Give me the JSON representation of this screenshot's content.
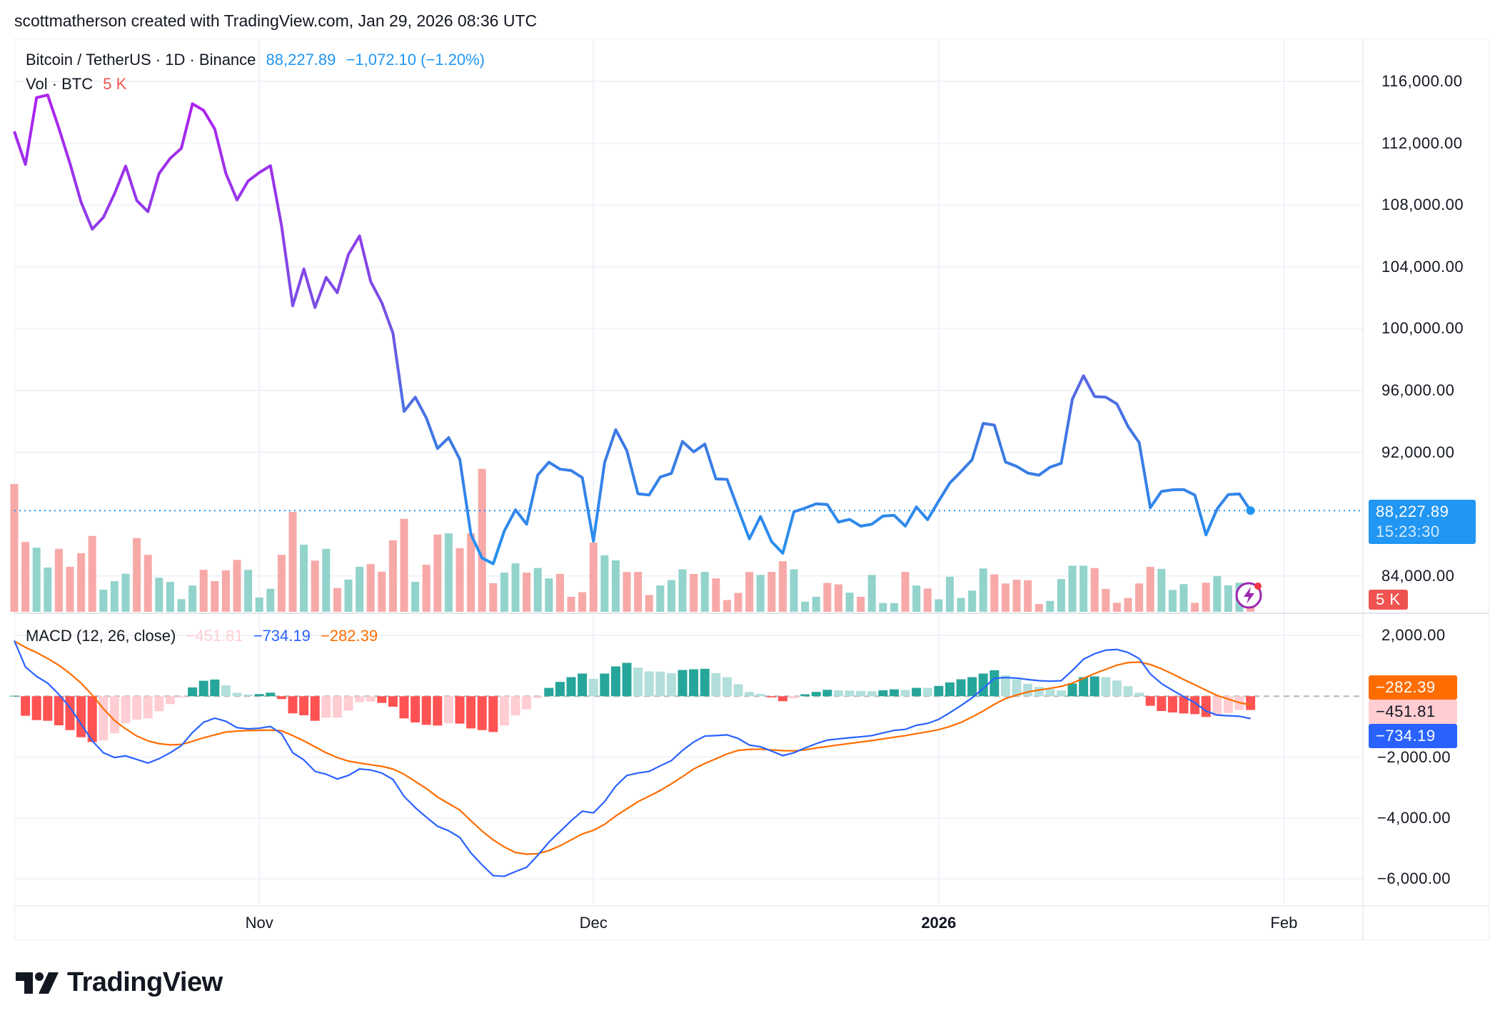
{
  "header": {
    "caption": "scottmatherson created with TradingView.com, Jan 29, 2026 08:36 UTC"
  },
  "legend": {
    "symbol": "Bitcoin / TetherUS · 1D · Binance",
    "last_price": "88,227.89",
    "change": "−1,072.10 (−1.20%)",
    "volume_label": "Vol · BTC",
    "volume_value": "5 K"
  },
  "macd_legend": {
    "label": "MACD (12, 26, close)",
    "histogram": "−451.81",
    "macd": "−734.19",
    "signal": "−282.39"
  },
  "price_axis": {
    "labels": [
      "116,000.00",
      "112,000.00",
      "108,000.00",
      "104,000.00",
      "100,000.00",
      "96,000.00",
      "92,000.00",
      "84,000.00"
    ],
    "current_price_tag": "88,227.89",
    "countdown": "15:23:30",
    "volume_tag": "5 K"
  },
  "macd_axis": {
    "labels": [
      "2,000.00",
      "−2,000.00",
      "−4,000.00",
      "−6,000.00"
    ],
    "signal_tag": "−282.39",
    "histogram_tag": "−451.81",
    "macd_tag": "−734.19"
  },
  "time_axis": {
    "labels": [
      "Nov",
      "Dec",
      "2026",
      "Feb"
    ],
    "label_dates": [
      "2025-11-01",
      "2025-12-01",
      "2026-01-01",
      "2026-02-01"
    ]
  },
  "branding": {
    "logo_text": "TradingView"
  },
  "colors": {
    "price_line_top": "#b31ef0",
    "price_line_bottom": "#2196f3",
    "up_volume": "#92d3cc",
    "down_volume": "#f7a9a7",
    "macd_line": "#2962ff",
    "signal_line": "#ff6d00",
    "hist_up_strong": "#26a69a",
    "hist_up_weak": "#b2dfdb",
    "hist_down_strong": "#ff5252",
    "hist_down_weak": "#ffcdd2",
    "price_tag": "#2196f3",
    "volume_tag": "#ef5350"
  },
  "chart_data": [
    {
      "type": "line",
      "title": "Bitcoin / TetherUS · 1D · Binance",
      "ylim": [
        82000,
        117000
      ],
      "y_ticks": [
        116000,
        112000,
        108000,
        104000,
        100000,
        96000,
        92000,
        84000
      ],
      "grid": true,
      "dates": [
        "2025-10-10",
        "2025-10-11",
        "2025-10-12",
        "2025-10-13",
        "2025-10-14",
        "2025-10-15",
        "2025-10-16",
        "2025-10-17",
        "2025-10-18",
        "2025-10-19",
        "2025-10-20",
        "2025-10-21",
        "2025-10-22",
        "2025-10-23",
        "2025-10-24",
        "2025-10-25",
        "2025-10-26",
        "2025-10-27",
        "2025-10-28",
        "2025-10-29",
        "2025-10-30",
        "2025-10-31",
        "2025-11-01",
        "2025-11-02",
        "2025-11-03",
        "2025-11-04",
        "2025-11-05",
        "2025-11-06",
        "2025-11-07",
        "2025-11-08",
        "2025-11-09",
        "2025-11-10",
        "2025-11-11",
        "2025-11-12",
        "2025-11-13",
        "2025-11-14",
        "2025-11-15",
        "2025-11-16",
        "2025-11-17",
        "2025-11-18",
        "2025-11-19",
        "2025-11-20",
        "2025-11-21",
        "2025-11-22",
        "2025-11-23",
        "2025-11-24",
        "2025-11-25",
        "2025-11-26",
        "2025-11-27",
        "2025-11-28",
        "2025-11-29",
        "2025-11-30",
        "2025-12-01",
        "2025-12-02",
        "2025-12-03",
        "2025-12-04",
        "2025-12-05",
        "2025-12-06",
        "2025-12-07",
        "2025-12-08",
        "2025-12-09",
        "2025-12-10",
        "2025-12-11",
        "2025-12-12",
        "2025-12-13",
        "2025-12-14",
        "2025-12-15",
        "2025-12-16",
        "2025-12-17",
        "2025-12-18",
        "2025-12-19",
        "2025-12-20",
        "2025-12-21",
        "2025-12-22",
        "2025-12-23",
        "2025-12-24",
        "2025-12-25",
        "2025-12-26",
        "2025-12-27",
        "2025-12-28",
        "2025-12-29",
        "2025-12-30",
        "2025-12-31",
        "2026-01-01",
        "2026-01-02",
        "2026-01-03",
        "2026-01-04",
        "2026-01-05",
        "2026-01-06",
        "2026-01-07",
        "2026-01-08",
        "2026-01-09",
        "2026-01-10",
        "2026-01-11",
        "2026-01-12",
        "2026-01-13",
        "2026-01-14",
        "2026-01-15",
        "2026-01-16",
        "2026-01-17",
        "2026-01-18",
        "2026-01-19",
        "2026-01-20",
        "2026-01-21",
        "2026-01-22",
        "2026-01-23",
        "2026-01-24",
        "2026-01-25",
        "2026-01-26",
        "2026-01-27",
        "2026-01-28",
        "2026-01-29"
      ],
      "close": [
        112764,
        110625,
        114946,
        115120,
        112980,
        110690,
        108180,
        106440,
        107200,
        108730,
        110520,
        108290,
        107570,
        110040,
        111020,
        111670,
        114550,
        114120,
        112920,
        110040,
        108330,
        109560,
        110100,
        110540,
        106650,
        101480,
        103860,
        101370,
        103320,
        102330,
        104800,
        106000,
        103050,
        101680,
        99710,
        94650,
        95570,
        94220,
        92250,
        92950,
        91550,
        86690,
        85160,
        84790,
        86915,
        88280,
        87350,
        90530,
        91360,
        90910,
        90820,
        90360,
        86250,
        91330,
        93460,
        92110,
        89320,
        89240,
        90400,
        90640,
        92700,
        92030,
        92530,
        90280,
        90250,
        88310,
        86400,
        87845,
        86220,
        85470,
        88155,
        88390,
        88670,
        88620,
        87490,
        87660,
        87225,
        87350,
        87875,
        87920,
        87225,
        88465,
        87640,
        88850,
        90015,
        90750,
        91520,
        93870,
        93760,
        91370,
        91090,
        90660,
        90520,
        91040,
        91290,
        95440,
        96955,
        95610,
        95570,
        95130,
        93670,
        92630,
        88420,
        89470,
        89575,
        89590,
        89235,
        86660,
        88340,
        89270,
        89310,
        88227.89
      ],
      "volume_k": [
        55.4,
        30.3,
        27.8,
        19.2,
        27.3,
        19.5,
        25.4,
        32.9,
        9.6,
        13.3,
        16.5,
        32,
        24.7,
        14.8,
        13,
        5.5,
        11.4,
        18.2,
        13.3,
        18,
        22.5,
        18.2,
        6.2,
        10,
        24.7,
        43.3,
        29.1,
        22.2,
        27.3,
        10.3,
        14,
        19.5,
        20.7,
        17.4,
        31,
        40.3,
        13,
        20.4,
        33.5,
        34,
        27.6,
        34,
        62,
        12.4,
        17,
        21,
        17,
        19,
        14.5,
        16.4,
        6.5,
        8.5,
        30,
        24.5,
        22.3,
        17.3,
        17.3,
        7.3,
        11.4,
        13.8,
        18.4,
        16.4,
        17.3,
        14.5,
        5.1,
        8.2,
        17.3,
        16,
        17.3,
        21.9,
        18.4,
        4.4,
        6.5,
        12.5,
        11.9,
        8.3,
        6.5,
        16,
        3.8,
        3.8,
        17.3,
        11.4,
        10.1,
        5.4,
        15.2,
        6,
        9.2,
        18.8,
        16.2,
        12.3,
        13.9,
        13.7,
        3.4,
        4.7,
        14.2,
        20,
        20,
        19,
        9.9,
        3.9,
        6,
        12.3,
        19.5,
        18.6,
        9.5,
        12,
        3.9,
        12.6,
        15.5,
        11.5,
        12.6,
        5
      ],
      "volume_direction": [
        "d",
        "d",
        "u",
        "u",
        "d",
        "d",
        "d",
        "d",
        "u",
        "u",
        "u",
        "d",
        "d",
        "u",
        "u",
        "u",
        "u",
        "d",
        "d",
        "d",
        "d",
        "u",
        "u",
        "u",
        "d",
        "d",
        "u",
        "d",
        "u",
        "d",
        "u",
        "u",
        "d",
        "d",
        "d",
        "d",
        "u",
        "d",
        "d",
        "u",
        "d",
        "d",
        "d",
        "d",
        "u",
        "u",
        "d",
        "u",
        "u",
        "d",
        "d",
        "d",
        "d",
        "u",
        "u",
        "d",
        "d",
        "d",
        "u",
        "u",
        "u",
        "d",
        "u",
        "d",
        "d",
        "d",
        "d",
        "u",
        "d",
        "d",
        "u",
        "u",
        "u",
        "d",
        "d",
        "u",
        "d",
        "u",
        "u",
        "u",
        "d",
        "u",
        "d",
        "u",
        "u",
        "u",
        "u",
        "u",
        "d",
        "d",
        "d",
        "d",
        "d",
        "u",
        "u",
        "u",
        "u",
        "d",
        "d",
        "d",
        "d",
        "d",
        "d",
        "u",
        "u",
        "u",
        "d",
        "d",
        "u",
        "u",
        "u",
        "d"
      ]
    },
    {
      "type": "line",
      "title": "MACD (12, 26, close)",
      "ylim": [
        -6800,
        2600
      ],
      "y_ticks": [
        2000,
        -2000,
        -4000,
        -6000
      ],
      "series": [
        {
          "name": "MACD",
          "values": [
            1827,
            964,
            651,
            431,
            63,
            -368,
            -917,
            -1466,
            -1858,
            -2015,
            -1960,
            -2078,
            -2195,
            -2054,
            -1858,
            -1623,
            -1192,
            -855,
            -721,
            -823,
            -1035,
            -1074,
            -1051,
            -996,
            -1231,
            -1858,
            -2093,
            -2470,
            -2564,
            -2720,
            -2603,
            -2391,
            -2423,
            -2524,
            -2736,
            -3293,
            -3661,
            -3975,
            -4273,
            -4422,
            -4641,
            -5151,
            -5543,
            -5896,
            -5919,
            -5762,
            -5621,
            -5229,
            -4798,
            -4445,
            -4092,
            -3779,
            -3834,
            -3465,
            -2956,
            -2603,
            -2524,
            -2470,
            -2289,
            -2117,
            -1780,
            -1505,
            -1309,
            -1294,
            -1270,
            -1388,
            -1607,
            -1662,
            -1803,
            -1952,
            -1858,
            -1701,
            -1560,
            -1443,
            -1403,
            -1364,
            -1333,
            -1294,
            -1207,
            -1121,
            -1090,
            -956,
            -894,
            -760,
            -541,
            -306,
            -55,
            259,
            588,
            612,
            596,
            549,
            510,
            494,
            510,
            847,
            1215,
            1396,
            1513,
            1537,
            1435,
            1239,
            729,
            416,
            196,
            -16,
            -212,
            -486,
            -619,
            -643,
            -659,
            -734.19
          ]
        },
        {
          "name": "Signal",
          "values": [
            1811,
            1607,
            1435,
            1239,
            1019,
            745,
            431,
            39,
            -408,
            -800,
            -1074,
            -1309,
            -1466,
            -1560,
            -1599,
            -1584,
            -1482,
            -1364,
            -1270,
            -1176,
            -1145,
            -1129,
            -1121,
            -1113,
            -1137,
            -1294,
            -1466,
            -1662,
            -1858,
            -2015,
            -2132,
            -2195,
            -2250,
            -2305,
            -2391,
            -2564,
            -2799,
            -3034,
            -3309,
            -3528,
            -3740,
            -4092,
            -4430,
            -4720,
            -4955,
            -5135,
            -5190,
            -5174,
            -5072,
            -4916,
            -4720,
            -4524,
            -4406,
            -4210,
            -3936,
            -3700,
            -3465,
            -3285,
            -3097,
            -2877,
            -2642,
            -2391,
            -2211,
            -2054,
            -1897,
            -1780,
            -1748,
            -1740,
            -1764,
            -1788,
            -1795,
            -1764,
            -1701,
            -1654,
            -1599,
            -1552,
            -1505,
            -1458,
            -1403,
            -1348,
            -1294,
            -1231,
            -1168,
            -1098,
            -996,
            -862,
            -682,
            -486,
            -267,
            -78,
            39,
            141,
            204,
            259,
            321,
            431,
            588,
            745,
            886,
            1019,
            1105,
            1121,
            1043,
            902,
            729,
            549,
            376,
            196,
            24,
            -94,
            -212,
            -282.39
          ]
        }
      ]
    }
  ]
}
